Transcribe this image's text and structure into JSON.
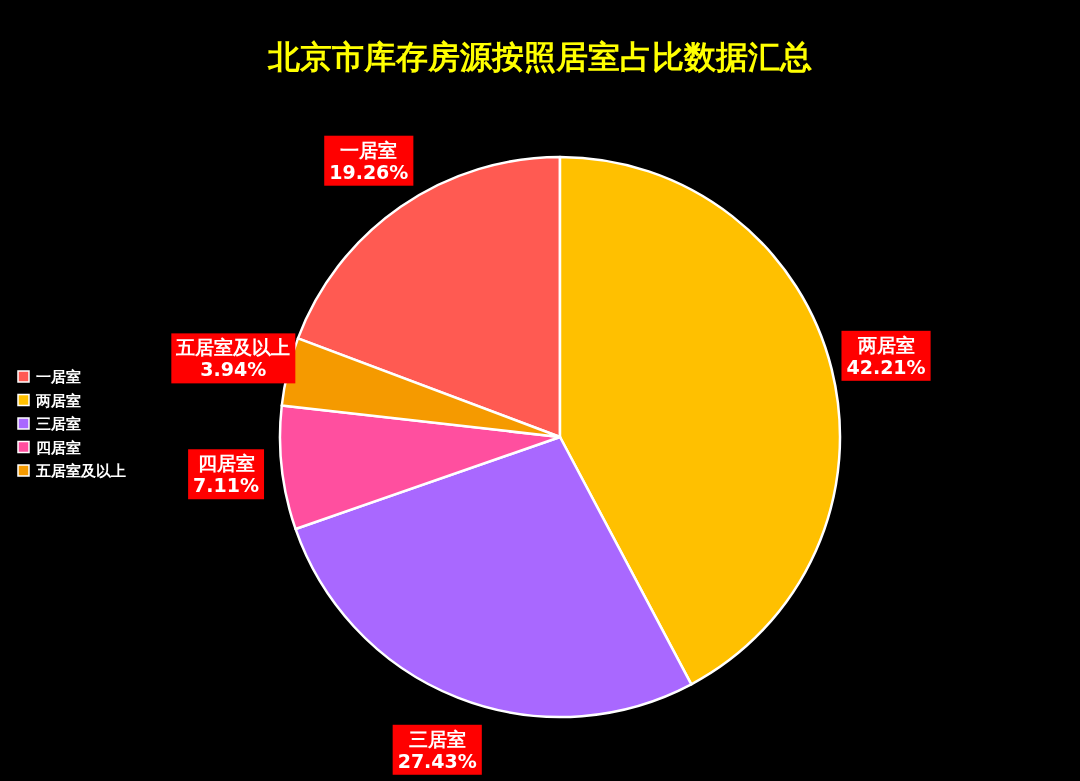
{
  "chart_data": {
    "type": "pie",
    "title": "北京市库存房源按照居室占比数据汇总",
    "categories": [
      "一居室",
      "两居室",
      "三居室",
      "四居室",
      "五居室及以上"
    ],
    "values": [
      19.26,
      42.21,
      27.43,
      7.11,
      3.94
    ],
    "colors": [
      "#ff5a52",
      "#ffc000",
      "#a968ff",
      "#ff4f9f",
      "#f59a00"
    ],
    "value_labels": [
      "19.26%",
      "42.21%",
      "27.43%",
      "7.11%",
      "3.94%"
    ],
    "legend": "left"
  }
}
